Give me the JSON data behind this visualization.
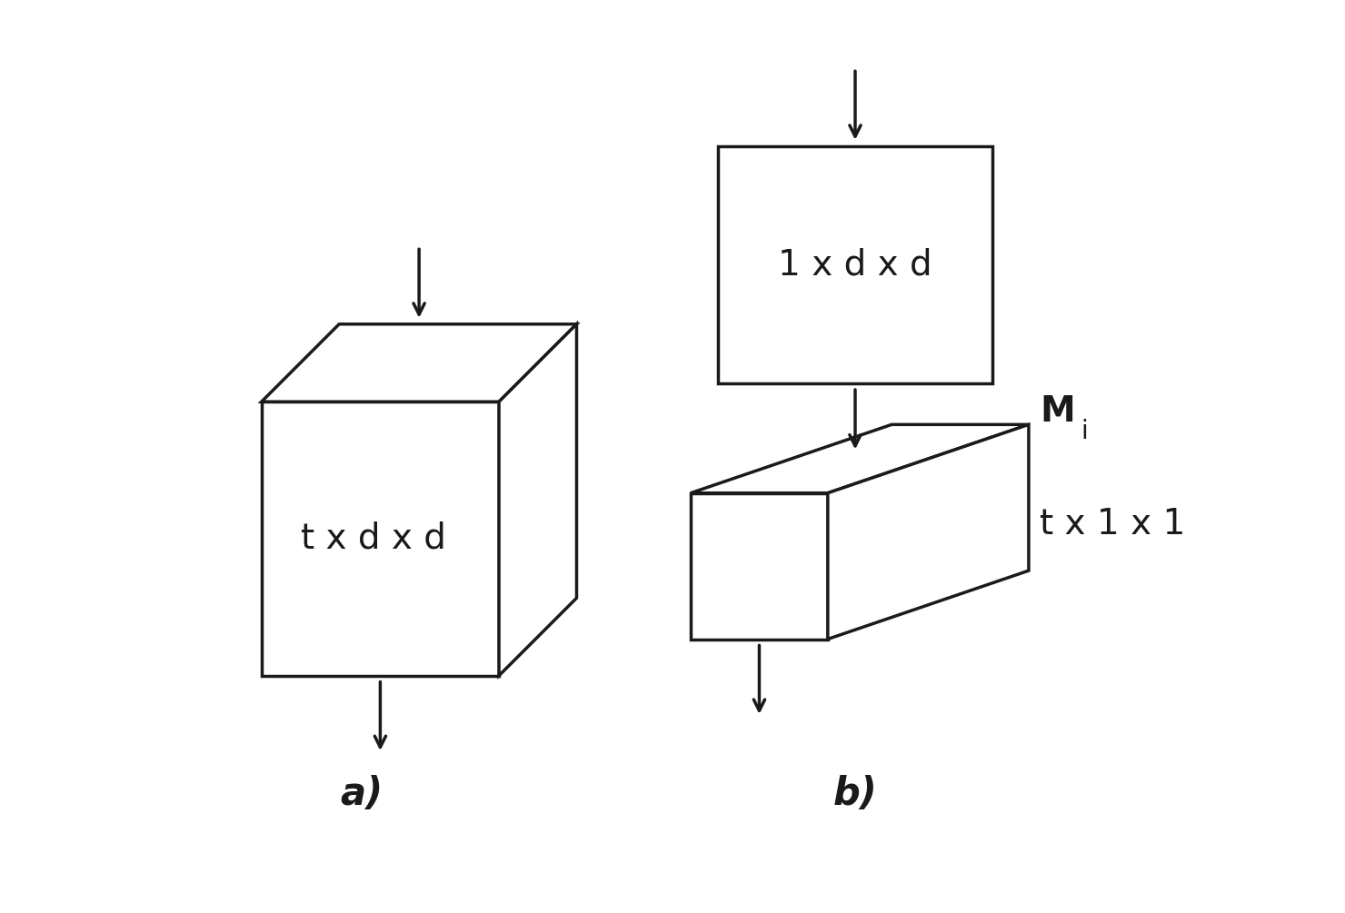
{
  "bg_color": "#ffffff",
  "line_color": "#1a1a1a",
  "text_color": "#1a1a1a",
  "label_color": "#1a1a1a",
  "label_a": "a)",
  "label_b": "b)",
  "cube_a_label": "t x d x d",
  "rect_b_label": "1 x d x d",
  "box_b_label": "t x 1 x 1",
  "mi_label": "M",
  "mi_sub": "i",
  "line_width": 2.5
}
